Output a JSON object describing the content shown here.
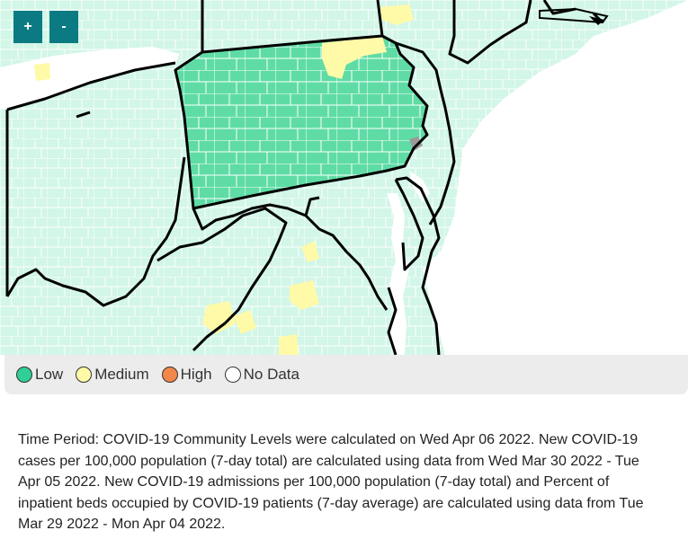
{
  "map": {
    "zoom_in_label": "+",
    "zoom_out_label": "-",
    "fill_colors": {
      "low_background": "#d2f6e7",
      "low_highlight": "#5fdca6",
      "medium": "#fffaa8",
      "no_data": "#9a9a9a",
      "county_lines": "#ffffff",
      "state_lines": "#000000"
    }
  },
  "legend": {
    "items": [
      {
        "label": "Low",
        "color": "#2fcf96"
      },
      {
        "label": "Medium",
        "color": "#fffaa8"
      },
      {
        "label": "High",
        "color": "#f2874a"
      },
      {
        "label": "No Data",
        "color": "#ffffff"
      }
    ]
  },
  "note": {
    "text": "Time Period: COVID-19 Community Levels were calculated on Wed Apr 06 2022. New COVID-19 cases per 100,000 population (7-day total) are calculated using data from Wed Mar 30 2022 - Tue Apr 05 2022. New COVID-19 admissions per 100,000 population (7-day total) and Percent of inpatient beds occupied by COVID-19 patients (7-day average) are calculated using data from Tue Mar 29 2022 - Mon Apr 04 2022."
  }
}
